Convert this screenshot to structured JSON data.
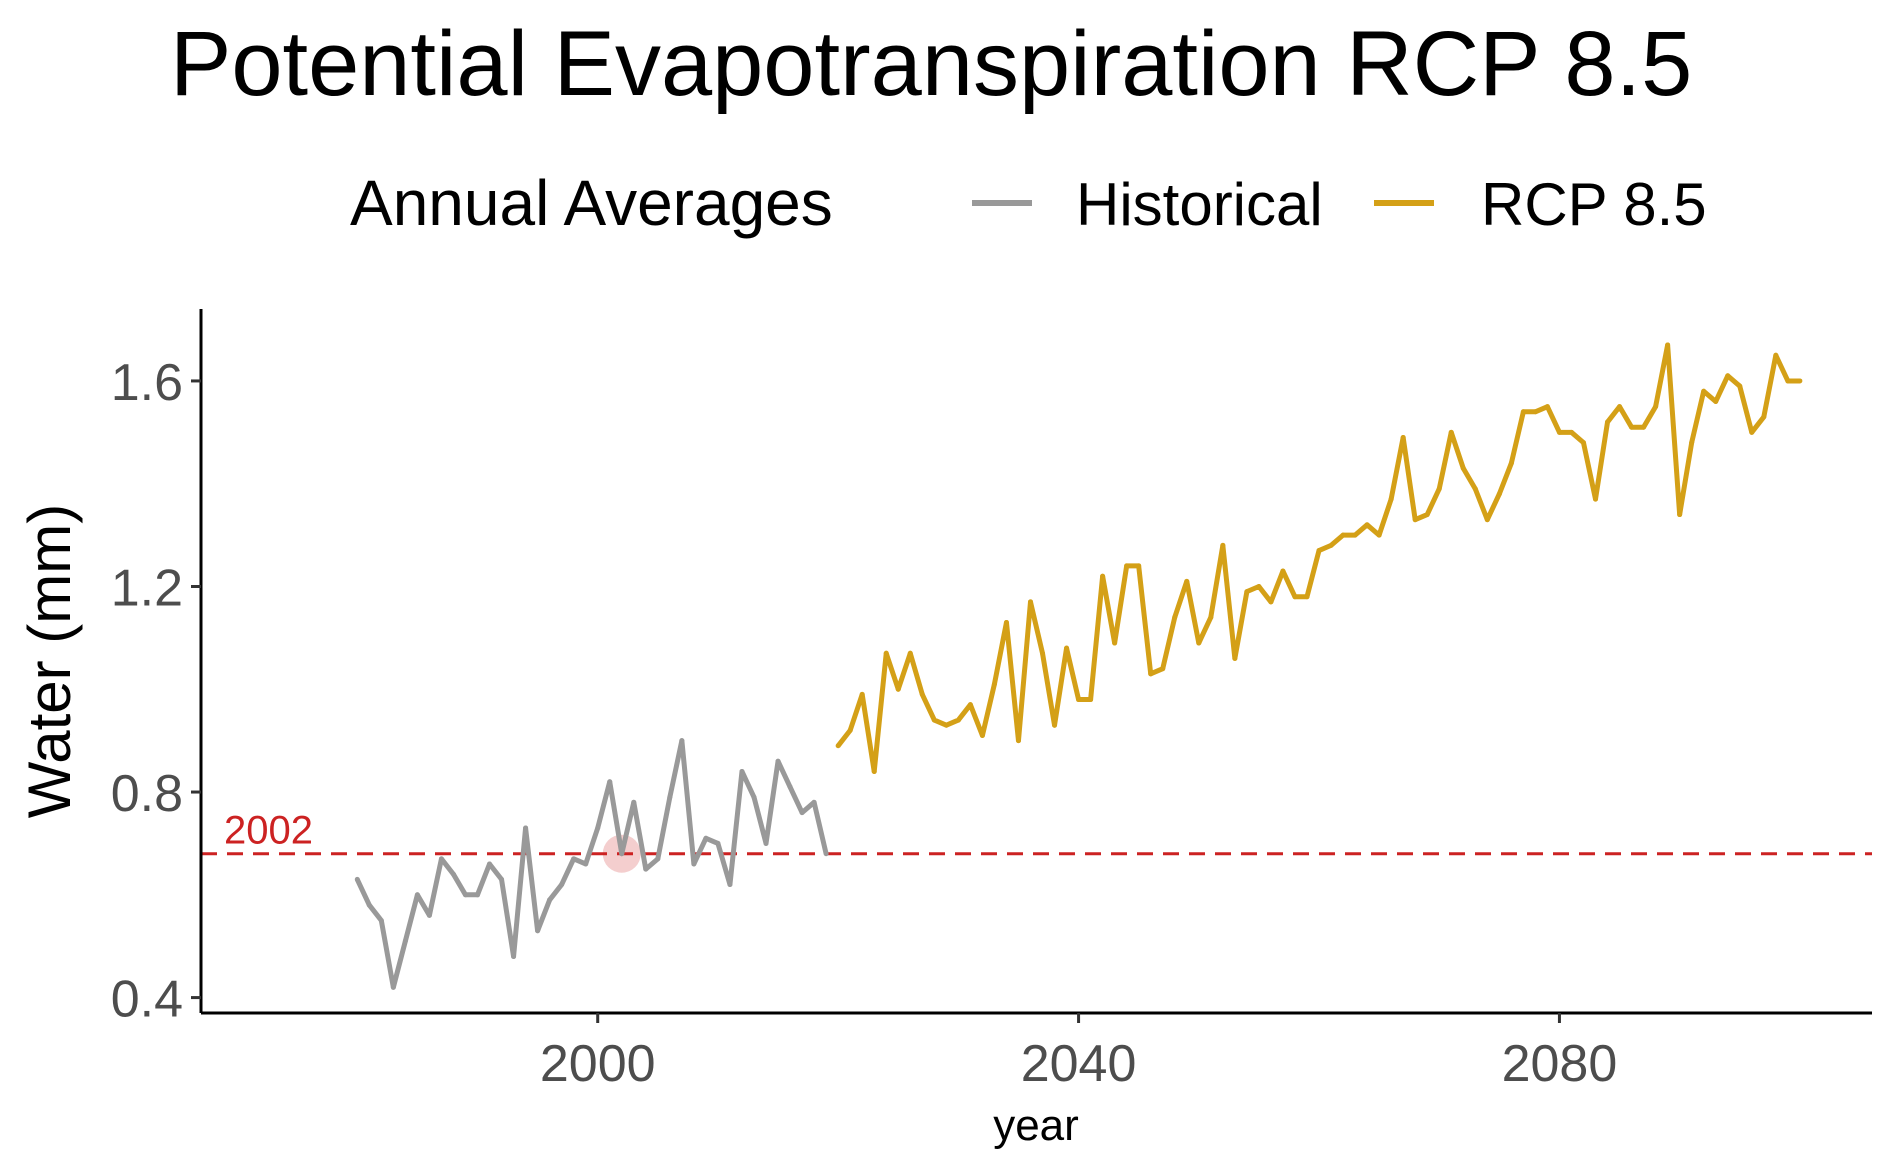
{
  "chart_data": {
    "type": "line",
    "title": "Potential Evapotranspiration RCP 8.5",
    "legend": {
      "title": "Annual Averages",
      "position": "top",
      "entries": [
        {
          "label": "Historical",
          "color": "#999999"
        },
        {
          "label": "RCP 8.5",
          "color": "#D4A017"
        }
      ]
    },
    "xlabel": "year",
    "ylabel": "Water (mm)",
    "xlim": [
      1967,
      2106
    ],
    "ylim": [
      0.37,
      1.74
    ],
    "xticks": [
      2000,
      2040,
      2080
    ],
    "yticks": [
      0.4,
      0.8,
      1.2,
      1.6
    ],
    "ytick_labels": [
      "0.4",
      "0.8",
      "1.2",
      "1.6"
    ],
    "grid": false,
    "reference_line": {
      "y": 0.68,
      "label": "2002",
      "color": "#CC2222",
      "style": "dashed"
    },
    "highlight_point": {
      "x": 2002,
      "y": 0.68,
      "color": "#CC2222"
    },
    "series": [
      {
        "name": "Historical",
        "color": "#999999",
        "x": [
          1980,
          1981,
          1982,
          1983,
          1984,
          1985,
          1986,
          1987,
          1988,
          1989,
          1990,
          1991,
          1992,
          1993,
          1994,
          1995,
          1996,
          1997,
          1998,
          1999,
          2000,
          2001,
          2002,
          2003,
          2004,
          2005,
          2006,
          2007,
          2008,
          2009,
          2010,
          2011,
          2012,
          2013,
          2014,
          2015,
          2016,
          2017,
          2018,
          2019
        ],
        "y": [
          0.63,
          0.58,
          0.55,
          0.42,
          0.51,
          0.6,
          0.56,
          0.67,
          0.64,
          0.6,
          0.6,
          0.66,
          0.63,
          0.48,
          0.73,
          0.53,
          0.59,
          0.62,
          0.67,
          0.66,
          0.73,
          0.82,
          0.68,
          0.78,
          0.65,
          0.67,
          0.79,
          0.9,
          0.66,
          0.71,
          0.7,
          0.62,
          0.84,
          0.79,
          0.7,
          0.86,
          0.81,
          0.76,
          0.78,
          0.68
        ]
      },
      {
        "name": "RCP 8.5",
        "color": "#D4A017",
        "x": [
          2020,
          2021,
          2022,
          2023,
          2024,
          2025,
          2026,
          2027,
          2028,
          2029,
          2030,
          2031,
          2032,
          2033,
          2034,
          2035,
          2036,
          2037,
          2038,
          2039,
          2040,
          2041,
          2042,
          2043,
          2044,
          2045,
          2046,
          2047,
          2048,
          2049,
          2050,
          2051,
          2052,
          2053,
          2054,
          2055,
          2056,
          2057,
          2058,
          2059,
          2060,
          2061,
          2062,
          2063,
          2064,
          2065,
          2066,
          2067,
          2068,
          2069,
          2070,
          2071,
          2072,
          2073,
          2074,
          2075,
          2076,
          2077,
          2078,
          2079,
          2080,
          2081,
          2082,
          2083,
          2084,
          2085,
          2086,
          2087,
          2088,
          2089,
          2090,
          2091,
          2092,
          2093,
          2094,
          2095,
          2096,
          2097,
          2098,
          2099,
          2100
        ],
        "y": [
          0.89,
          0.92,
          0.99,
          0.84,
          1.07,
          1.0,
          1.07,
          0.99,
          0.94,
          0.93,
          0.94,
          0.97,
          0.91,
          1.01,
          1.13,
          0.9,
          1.17,
          1.07,
          0.93,
          1.08,
          0.98,
          0.98,
          1.22,
          1.09,
          1.24,
          1.24,
          1.03,
          1.04,
          1.14,
          1.21,
          1.09,
          1.14,
          1.28,
          1.06,
          1.19,
          1.2,
          1.17,
          1.23,
          1.18,
          1.18,
          1.27,
          1.28,
          1.3,
          1.3,
          1.32,
          1.3,
          1.37,
          1.49,
          1.33,
          1.34,
          1.39,
          1.5,
          1.43,
          1.39,
          1.33,
          1.38,
          1.44,
          1.54,
          1.54,
          1.55,
          1.5,
          1.5,
          1.48,
          1.37,
          1.52,
          1.55,
          1.51,
          1.51,
          1.55,
          1.67,
          1.34,
          1.48,
          1.58,
          1.56,
          1.61,
          1.59,
          1.5,
          1.53,
          1.65,
          1.6,
          1.6
        ]
      }
    ]
  }
}
